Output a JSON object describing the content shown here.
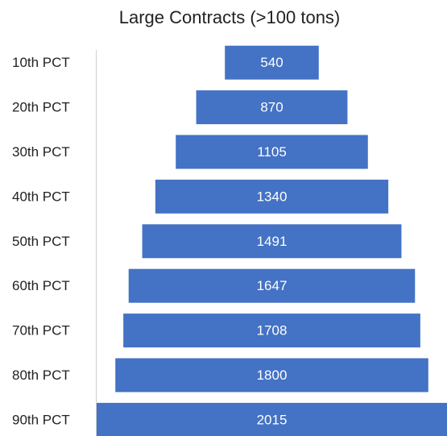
{
  "chart_data": {
    "type": "funnel",
    "title": "Large Contracts (>100 tons)",
    "categories": [
      "10th PCT",
      "20th PCT",
      "30th PCT",
      "40th PCT",
      "50th PCT",
      "60th PCT",
      "70th PCT",
      "80th PCT",
      "90th PCT"
    ],
    "values": [
      540,
      870,
      1105,
      1340,
      1491,
      1647,
      1708,
      1800,
      2015
    ],
    "color": "#4472c4"
  }
}
